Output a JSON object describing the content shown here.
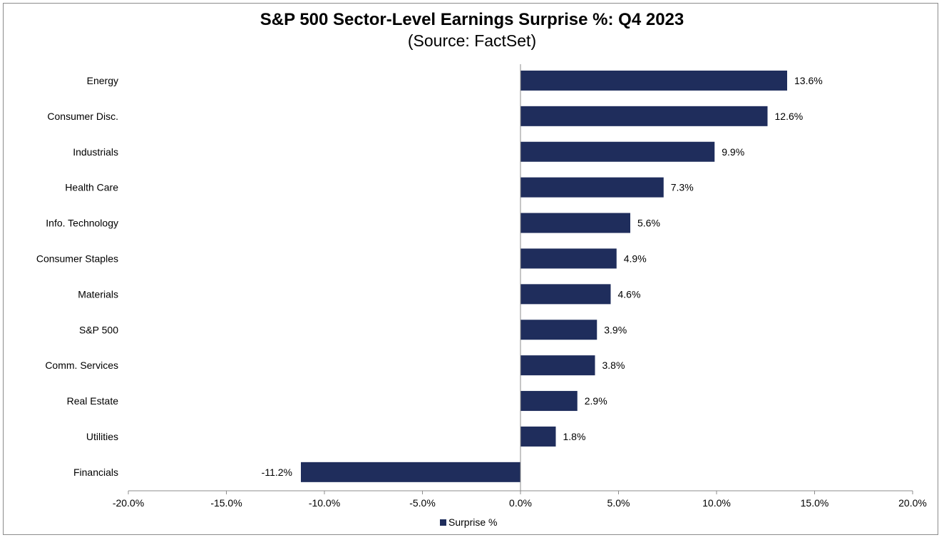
{
  "chart_data": {
    "type": "bar",
    "orientation": "horizontal",
    "title": "S&P 500 Sector-Level Earnings Surprise %: Q4 2023",
    "subtitle": "(Source: FactSet)",
    "categories": [
      "Energy",
      "Consumer Disc.",
      "Industrials",
      "Health Care",
      "Info. Technology",
      "Consumer Staples",
      "Materials",
      "S&P 500",
      "Comm. Services",
      "Real Estate",
      "Utilities",
      "Financials"
    ],
    "series": [
      {
        "name": "Surprise %",
        "values": [
          13.6,
          12.6,
          9.9,
          7.3,
          5.6,
          4.9,
          4.6,
          3.9,
          3.8,
          2.9,
          1.8,
          -11.2
        ],
        "labels": [
          "13.6%",
          "12.6%",
          "9.9%",
          "7.3%",
          "5.6%",
          "4.9%",
          "4.6%",
          "3.9%",
          "3.8%",
          "2.9%",
          "1.8%",
          "-11.2%"
        ],
        "color": "#1f2d5c"
      }
    ],
    "xlim": [
      -20,
      20
    ],
    "x_ticks": [
      -20,
      -15,
      -10,
      -5,
      0,
      5,
      10,
      15,
      20
    ],
    "x_tick_labels": [
      "-20.0%",
      "-15.0%",
      "-10.0%",
      "-5.0%",
      "0.0%",
      "5.0%",
      "10.0%",
      "15.0%",
      "20.0%"
    ],
    "grid": false,
    "legend": {
      "position": "bottom",
      "label": "Surprise %"
    }
  }
}
